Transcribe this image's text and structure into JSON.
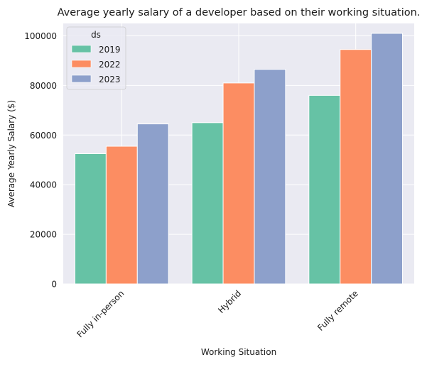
{
  "chart_data": {
    "type": "bar",
    "title": "Average yearly salary of a developer based on their working situation.",
    "xlabel": "Working Situation",
    "ylabel": "Average Yearly Salary ($)",
    "categories": [
      "Fully in-person",
      "Hybrid",
      "Fully remote"
    ],
    "series": [
      {
        "name": "2019",
        "values": [
          52500,
          65000,
          76000
        ],
        "color": "#66c2a5"
      },
      {
        "name": "2022",
        "values": [
          55500,
          81000,
          94500
        ],
        "color": "#fc8d62"
      },
      {
        "name": "2023",
        "values": [
          64500,
          86500,
          101000
        ],
        "color": "#8da0cb"
      }
    ],
    "ylim": [
      0,
      105000
    ],
    "yticks": [
      0,
      20000,
      40000,
      60000,
      80000,
      100000
    ],
    "legend": {
      "title": "ds",
      "position": "top-left"
    },
    "grid": true,
    "background_color": "#eaeaf2"
  }
}
